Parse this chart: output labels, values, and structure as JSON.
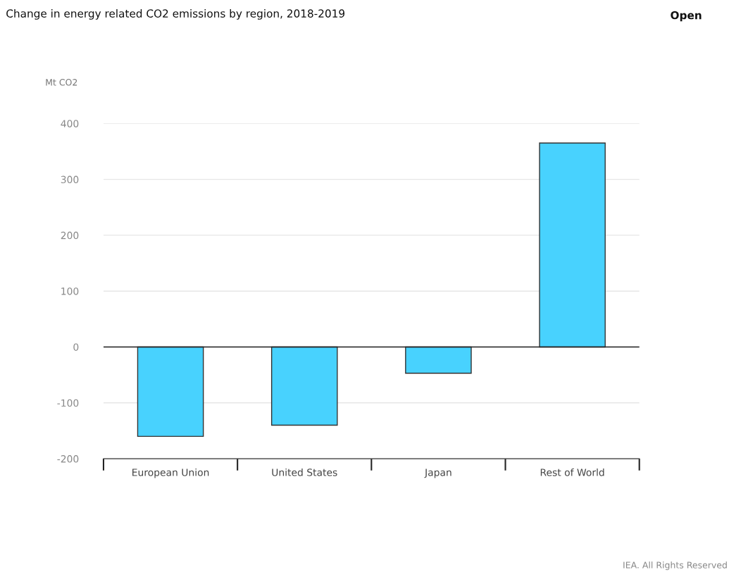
{
  "chart_data": {
    "type": "bar",
    "title": "Change in energy related CO2 emissions by region, 2018-2019",
    "ylabel": "Mt CO2",
    "categories": [
      "European Union",
      "United States",
      "Japan",
      "Rest of World"
    ],
    "values": [
      -160,
      -140,
      -47,
      365
    ],
    "color": "#48d2fe",
    "ylim": [
      -200,
      400
    ],
    "yticks": [
      -200,
      -100,
      0,
      100,
      200,
      300,
      400
    ],
    "grid": "y",
    "legend": false,
    "annotations": [
      "Open",
      "IEA. All Rights Reserved"
    ]
  }
}
